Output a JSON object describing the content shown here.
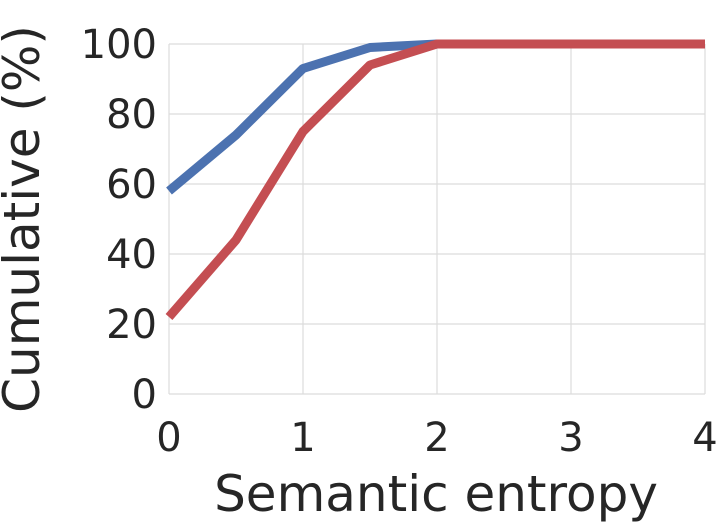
{
  "chart_data": {
    "type": "line",
    "title": "",
    "xlabel": "Semantic entropy",
    "ylabel": "Cumulative (%)",
    "xlim": [
      0,
      4
    ],
    "ylim": [
      0,
      100
    ],
    "xticks": [
      0,
      1,
      2,
      3,
      4
    ],
    "yticks": [
      0,
      20,
      40,
      60,
      80,
      100
    ],
    "xtick_labels": [
      "0",
      "1",
      "2",
      "3",
      "4"
    ],
    "ytick_labels": [
      "0",
      "20",
      "40",
      "60",
      "80",
      "100"
    ],
    "grid": true,
    "legend": "none",
    "series": [
      {
        "color": "#4c72b0",
        "x": [
          0,
          0.5,
          1,
          1.5,
          2,
          2.5,
          3,
          3.5,
          4
        ],
        "y": [
          58,
          74,
          93,
          99,
          100,
          100,
          100,
          100,
          100
        ]
      },
      {
        "color": "#c44e52",
        "x": [
          0,
          0.5,
          1,
          1.5,
          2,
          2.5,
          3,
          3.5,
          4
        ],
        "y": [
          22,
          44,
          75,
          94,
          100,
          100,
          100,
          100,
          100
        ]
      }
    ]
  }
}
